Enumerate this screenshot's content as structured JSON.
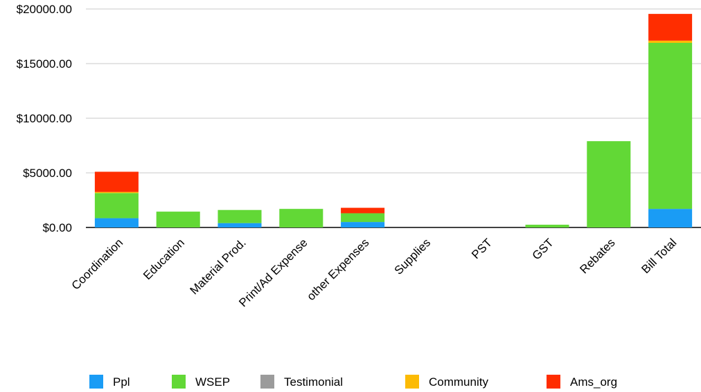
{
  "chart_data": {
    "type": "bar",
    "stacked": true,
    "categories": [
      "Coordination",
      "Education",
      "Material Prod.",
      "Print/Ad Expense",
      "other Expenses",
      "Supplies",
      "PST",
      "GST",
      "Rebates",
      "Bill Total"
    ],
    "series": [
      {
        "name": "Ppl",
        "color": "#1a9cf5",
        "values": [
          850,
          0,
          400,
          0,
          500,
          0,
          0,
          0,
          0,
          1700
        ]
      },
      {
        "name": "WSEP",
        "color": "#62d836",
        "values": [
          2300,
          1450,
          1200,
          1700,
          800,
          0,
          0,
          250,
          7900,
          15200
        ]
      },
      {
        "name": "Testimonial",
        "color": "#9b9b9b",
        "values": [
          0,
          0,
          0,
          0,
          0,
          0,
          0,
          0,
          0,
          0
        ]
      },
      {
        "name": "Community",
        "color": "#fcbb05",
        "values": [
          100,
          0,
          0,
          0,
          0,
          0,
          0,
          0,
          0,
          200
        ]
      },
      {
        "name": "Ams_org",
        "color": "#ff2d00",
        "values": [
          1850,
          0,
          0,
          0,
          500,
          0,
          0,
          0,
          0,
          2450
        ]
      }
    ],
    "y_ticks": [
      "$0.00",
      "$5000.00",
      "$10000.00",
      "$15000.00",
      "$20000.00"
    ],
    "ylim": [
      0,
      20000
    ],
    "grid": true,
    "legend_position": "bottom"
  }
}
